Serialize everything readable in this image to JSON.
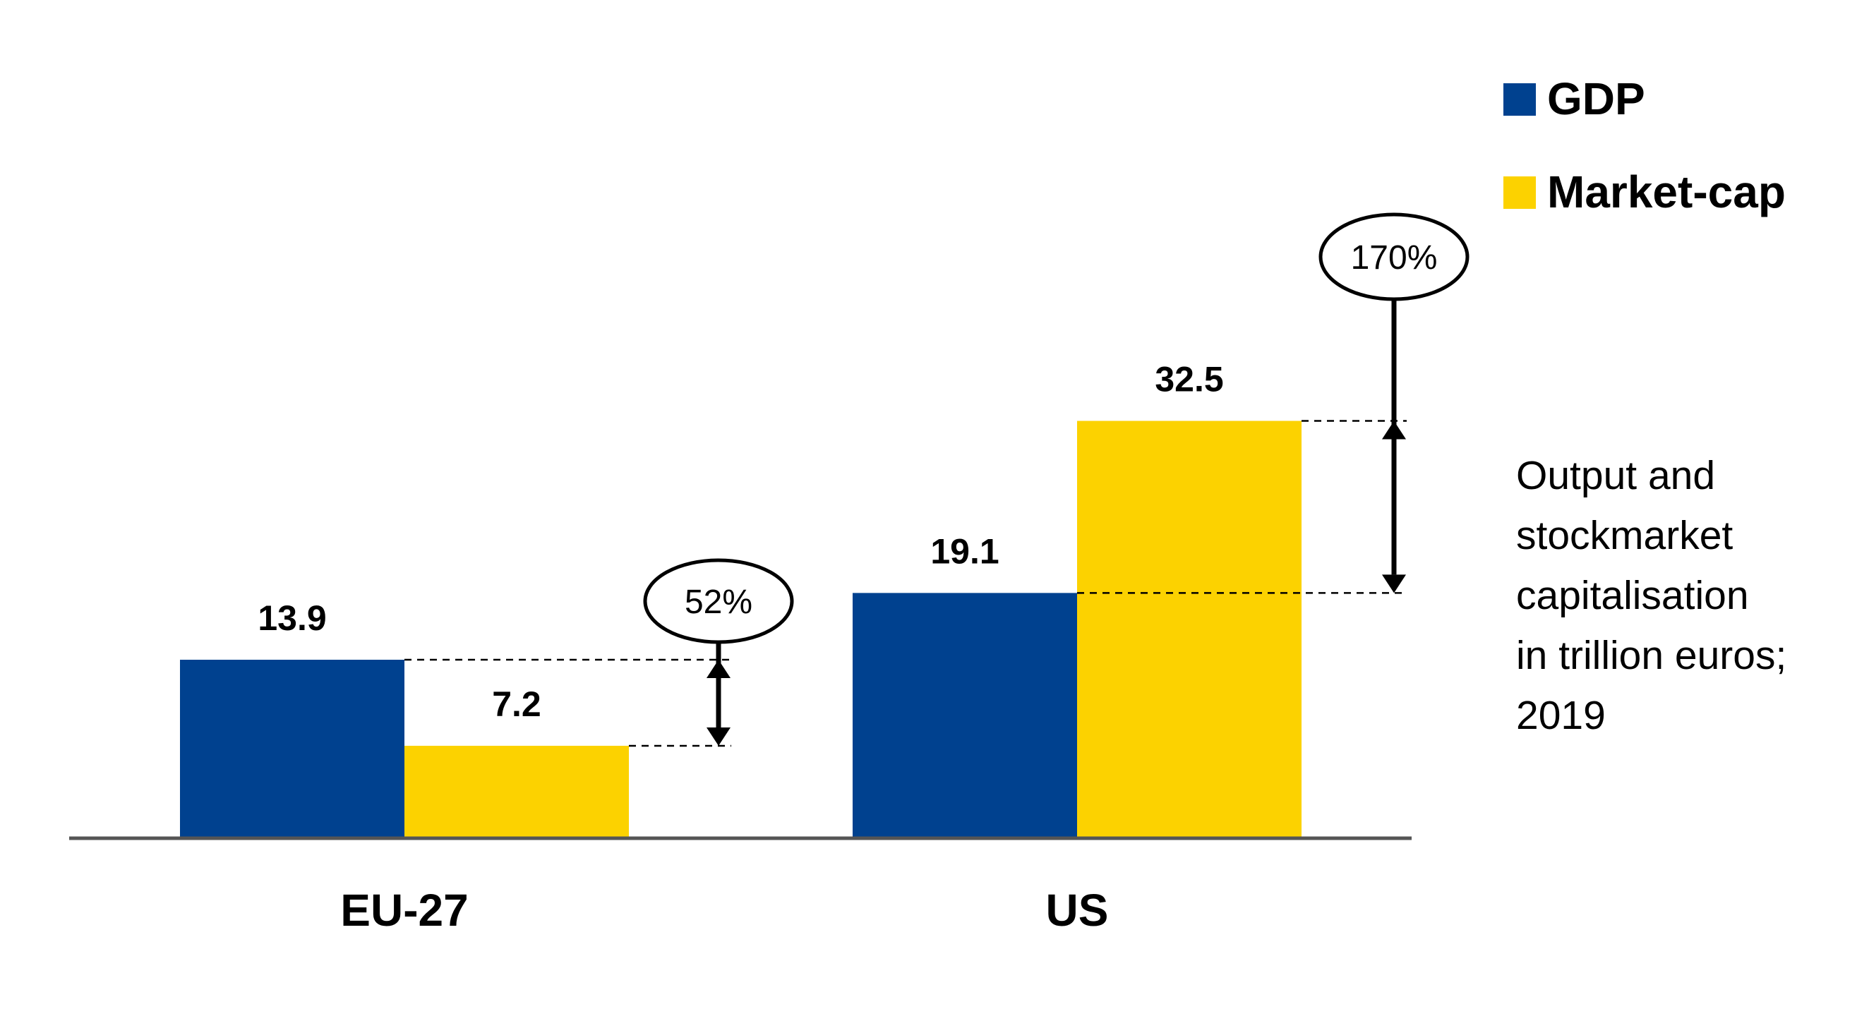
{
  "chart_data": {
    "type": "bar",
    "categories": [
      "EU-27",
      "US"
    ],
    "series": [
      {
        "name": "GDP",
        "values": [
          13.9,
          19.1
        ],
        "color": "#00418f"
      },
      {
        "name": "Market-cap",
        "values": [
          7.2,
          32.5
        ],
        "color": "#fcd200"
      }
    ],
    "ylim": [
      0,
      35
    ],
    "grid": false,
    "legend_position": "top-right",
    "annotations": [
      {
        "category": "EU-27",
        "text": "52%"
      },
      {
        "category": "US",
        "text": "170%"
      }
    ],
    "description_lines": [
      "Output and",
      "stockmarket",
      "capitalisation",
      "in trillion euros;",
      "2019"
    ]
  }
}
